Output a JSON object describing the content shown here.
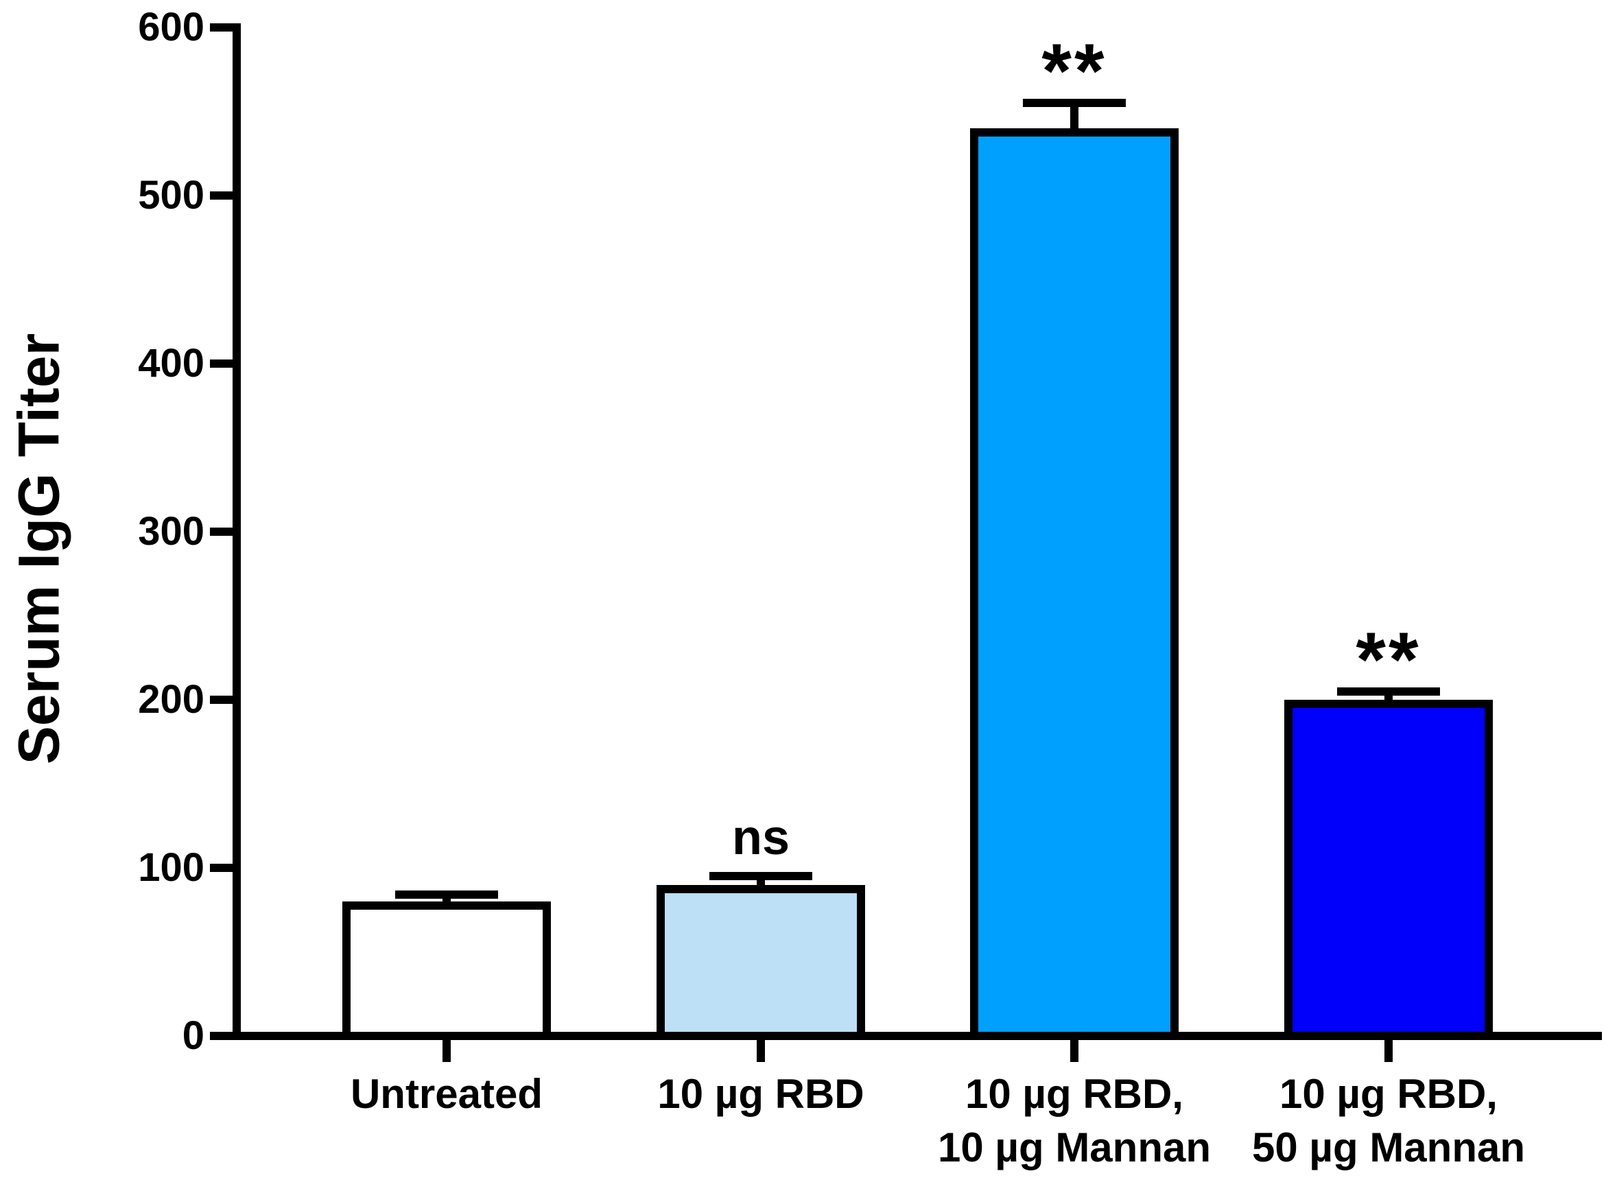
{
  "chart_data": {
    "type": "bar",
    "title": "",
    "ylabel": "Serum IgG Titer",
    "xlabel": "",
    "ylim": [
      0,
      600
    ],
    "yticks": [
      0,
      100,
      200,
      300,
      400,
      500,
      600
    ],
    "categories": [
      "Untreated",
      "10 µg RBD",
      "10 µg RBD, 10 µg Mannan",
      "10 µg RBD, 50 µg Mannan"
    ],
    "category_label_lines": [
      [
        "Untreated"
      ],
      [
        "10 µg RBD"
      ],
      [
        "10 µg RBD,",
        "10 µg Mannan"
      ],
      [
        "10 µg RBD,",
        "50 µg Mannan"
      ]
    ],
    "values": [
      80,
      90,
      540,
      200
    ],
    "errors": [
      4,
      5,
      15,
      5
    ],
    "error_bar_style": "upper-cap-only",
    "annotations": [
      "",
      "ns",
      "**",
      "**"
    ],
    "bar_fill_colors": [
      "#FFFFFF",
      "#BDE0F7",
      "#00A0FF",
      "#0000FB"
    ],
    "bar_border_color": "#000000",
    "axis_color": "#000000",
    "text_color": "#000000",
    "background_color": "#FFFFFF",
    "grid": false,
    "legend": false
  }
}
